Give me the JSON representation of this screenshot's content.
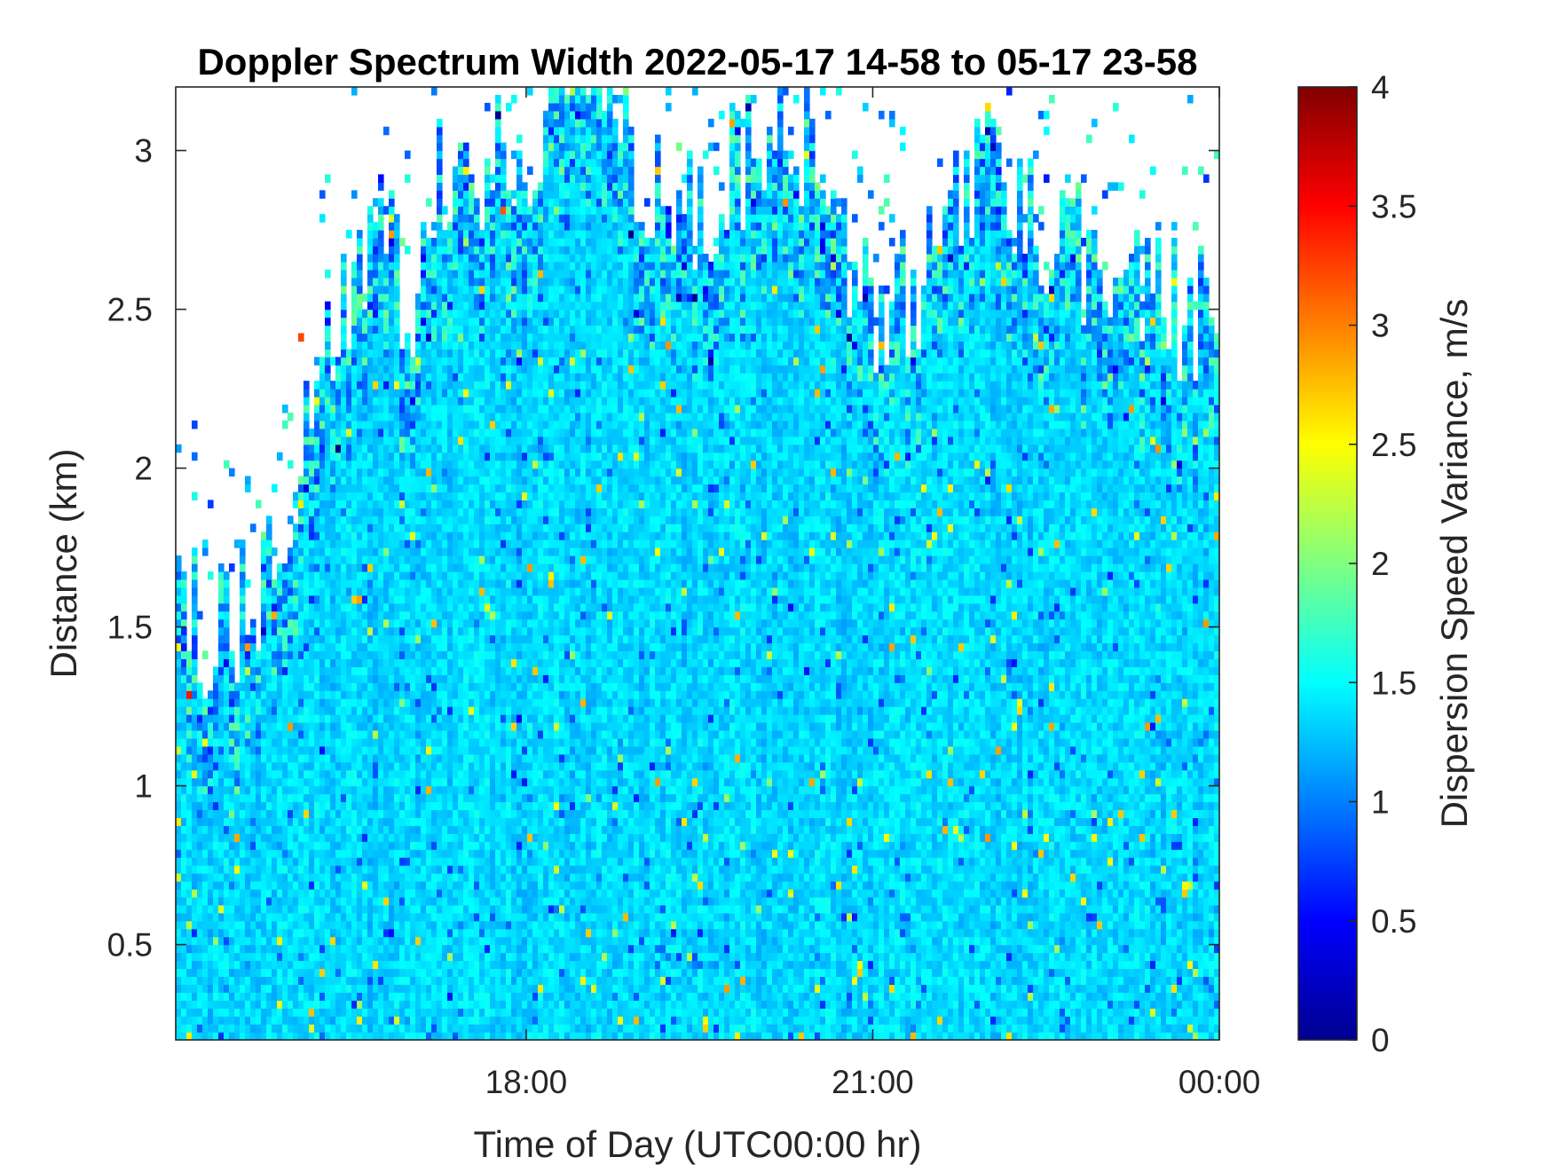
{
  "chart_data": {
    "type": "heatmap",
    "title": "Doppler Spectrum Width 2022-05-17 14-58 to 05-17 23-58",
    "xlabel": "Time of Day (UTC00:00 hr)",
    "ylabel": "Distance (km)",
    "colorbar_label": "Dispersion Speed Variance, m/s",
    "colormap": "jet",
    "xlim": [
      "2022-05-17 14:58",
      "2022-05-18 00:00"
    ],
    "ylim": [
      0.2,
      3.2
    ],
    "clim": [
      0,
      4
    ],
    "x_ticks": [
      "18:00",
      "21:00",
      "00:00"
    ],
    "y_ticks": [
      "0.5",
      "1",
      "1.5",
      "2",
      "2.5",
      "3"
    ],
    "y_tick_values": [
      0.5,
      1,
      1.5,
      2,
      2.5,
      3
    ],
    "colorbar_ticks": [
      "0",
      "0.5",
      "1",
      "1.5",
      "2",
      "2.5",
      "3",
      "3.5",
      "4"
    ],
    "colorbar_tick_values": [
      0,
      0.5,
      1,
      1.5,
      2,
      2.5,
      3,
      3.5,
      4
    ],
    "typical_value": 1.35,
    "signal_top_profile": {
      "time": [
        "15:00",
        "15:15",
        "15:30",
        "15:45",
        "16:00",
        "16:15",
        "16:30",
        "16:45",
        "17:00",
        "17:15",
        "17:30",
        "17:45",
        "18:00",
        "18:15",
        "18:30",
        "18:45",
        "19:00",
        "19:30",
        "20:00",
        "20:30",
        "20:45",
        "21:00",
        "21:15",
        "21:30",
        "22:00",
        "22:30",
        "23:00",
        "23:30",
        "00:00"
      ],
      "distance_km": [
        1.65,
        1.45,
        1.55,
        1.6,
        2.0,
        2.35,
        2.55,
        2.75,
        2.45,
        2.9,
        2.8,
        3.0,
        2.95,
        3.2,
        3.2,
        3.2,
        2.95,
        2.75,
        3.05,
        3.0,
        2.7,
        2.5,
        2.55,
        2.6,
        3.0,
        2.75,
        2.6,
        2.5,
        2.5
      ]
    }
  }
}
